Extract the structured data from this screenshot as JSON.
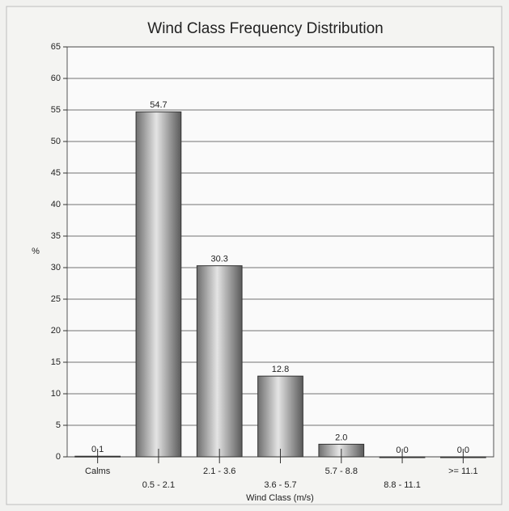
{
  "chart_data": {
    "type": "bar",
    "title": "Wind Class Frequency Distribution",
    "xlabel": "Wind Class (m/s)",
    "ylabel": "%",
    "categories": [
      "Calms",
      "0.5 -  2.1",
      "2.1 -  3.6",
      "3.6 -  5.7",
      "5.7 -  8.8",
      "8.8 - 11.1",
      ">= 11.1"
    ],
    "values": [
      0.1,
      54.7,
      30.3,
      12.8,
      2.0,
      0.0,
      0.0
    ],
    "value_labels": [
      "0.1",
      "54.7",
      "30.3",
      "12.8",
      "2.0",
      "0.0",
      "0.0"
    ],
    "color": "#9a9a9a",
    "ylim": [
      0,
      65
    ],
    "yticks": [
      0,
      5,
      10,
      15,
      20,
      25,
      30,
      35,
      40,
      45,
      50,
      55,
      60,
      65
    ],
    "grid": true
  }
}
